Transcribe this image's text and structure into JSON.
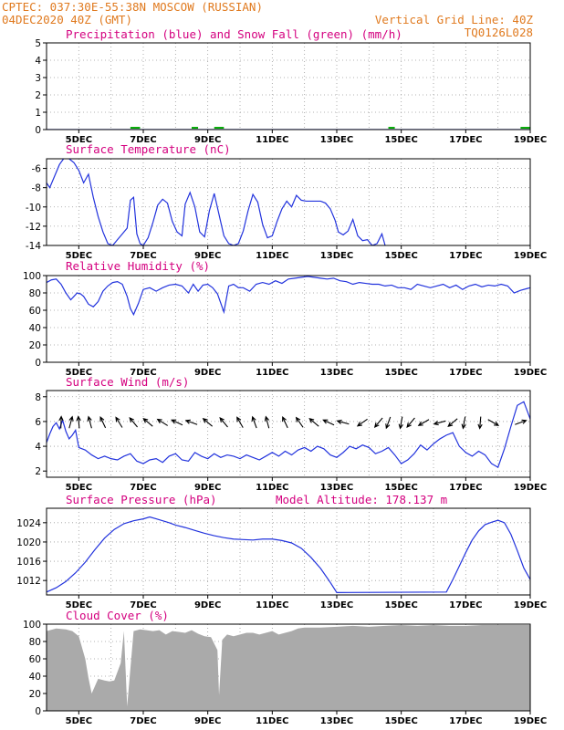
{
  "header": {
    "line1_left": "CPTEC:   037:30E-55:38N   MOSCOW (RUSSIAN)",
    "line2_left": "04DEC2020 40Z (GMT)",
    "line1_right": "Vertical Grid Line: 40Z",
    "line2_right": "TQ0126L028"
  },
  "colors": {
    "header": "#e07a1f",
    "title": "#d4007f",
    "line": "#2233dd",
    "snow": "#00aa00",
    "cloud": "#aaaaaa",
    "grid": "#9a9a9a",
    "arrow": "#000000"
  },
  "x_axis": {
    "ticks": [
      "5DEC",
      "7DEC",
      "9DEC",
      "11DEC",
      "13DEC",
      "15DEC",
      "17DEC",
      "19DEC"
    ],
    "tick_days": [
      5,
      7,
      9,
      11,
      13,
      15,
      17,
      19
    ],
    "range_days": [
      4.0,
      19.0
    ]
  },
  "chart_data": [
    {
      "id": "precip",
      "type": "line",
      "title": "Precipitation (blue) and Snow Fall (green) (mm/h)",
      "ylim": [
        0,
        5
      ],
      "yticks": [
        "0",
        "1",
        "2",
        "3",
        "4",
        "5"
      ],
      "series": [
        {
          "name": "Precipitation",
          "x": [
            4.0,
            19.0
          ],
          "y": [
            0,
            0
          ]
        },
        {
          "name": "Snow Fall",
          "segments": [
            [
              6.6,
              6.9
            ],
            [
              8.5,
              8.7
            ],
            [
              9.2,
              9.5
            ],
            [
              14.6,
              14.8
            ],
            [
              18.7,
              19.0
            ]
          ],
          "value": 0.05
        }
      ]
    },
    {
      "id": "temp",
      "type": "line",
      "title": "Surface Temperature (nC)",
      "ylim": [
        -14,
        -5
      ],
      "yticks": [
        "-14",
        "-12",
        "-10",
        "-8",
        "-6"
      ],
      "x": [
        4.0,
        4.1,
        4.25,
        4.4,
        4.55,
        4.7,
        4.85,
        5.0,
        5.15,
        5.3,
        5.45,
        5.6,
        5.75,
        5.9,
        6.05,
        6.2,
        6.35,
        6.5,
        6.6,
        6.7,
        6.8,
        6.9,
        7.0,
        7.15,
        7.3,
        7.45,
        7.6,
        7.75,
        7.9,
        8.05,
        8.2,
        8.3,
        8.45,
        8.6,
        8.75,
        8.9,
        9.05,
        9.2,
        9.35,
        9.5,
        9.65,
        9.8,
        9.95,
        10.1,
        10.25,
        10.4,
        10.55,
        10.7,
        10.85,
        11.0,
        11.15,
        11.3,
        11.45,
        11.6,
        11.75,
        11.9,
        12.05,
        12.2,
        12.35,
        12.5,
        12.65,
        12.8,
        12.95,
        13.05,
        13.2,
        13.35,
        13.5,
        13.65,
        13.8,
        13.95,
        14.1,
        14.25,
        14.4,
        14.5
      ],
      "y": [
        -7.5,
        -8.0,
        -6.8,
        -5.6,
        -4.9,
        -5.0,
        -5.4,
        -6.2,
        -7.5,
        -6.6,
        -9.0,
        -11.0,
        -12.6,
        -13.8,
        -14.0,
        -13.4,
        -12.8,
        -12.2,
        -9.3,
        -9.0,
        -12.8,
        -13.8,
        -14.0,
        -13.2,
        -11.6,
        -9.8,
        -9.2,
        -9.6,
        -11.5,
        -12.6,
        -13.0,
        -9.7,
        -8.5,
        -10.0,
        -12.6,
        -13.1,
        -10.4,
        -8.6,
        -10.8,
        -13.0,
        -13.8,
        -14.0,
        -13.8,
        -12.5,
        -10.4,
        -8.7,
        -9.5,
        -11.8,
        -13.2,
        -13.0,
        -11.5,
        -10.2,
        -9.4,
        -10.0,
        -8.8,
        -9.3,
        -9.4,
        -9.4,
        -9.4,
        -9.4,
        -9.6,
        -10.2,
        -11.4,
        -12.6,
        -12.9,
        -12.5,
        -11.3,
        -13.0,
        -13.5,
        -13.4,
        -14.0,
        -13.8,
        -12.8,
        -14.0
      ]
    },
    {
      "id": "rh",
      "type": "line",
      "title": "Relative Humidity (%)",
      "ylim": [
        0,
        100
      ],
      "yticks": [
        "0",
        "20",
        "40",
        "60",
        "80",
        "100"
      ],
      "x": [
        4.0,
        4.15,
        4.3,
        4.45,
        4.6,
        4.75,
        4.85,
        4.95,
        5.05,
        5.15,
        5.3,
        5.45,
        5.6,
        5.75,
        5.9,
        6.05,
        6.2,
        6.35,
        6.5,
        6.6,
        6.7,
        6.85,
        7.0,
        7.2,
        7.4,
        7.6,
        7.8,
        8.0,
        8.2,
        8.4,
        8.55,
        8.7,
        8.85,
        9.0,
        9.15,
        9.3,
        9.5,
        9.65,
        9.8,
        9.95,
        10.1,
        10.3,
        10.5,
        10.7,
        10.9,
        11.1,
        11.3,
        11.5,
        11.7,
        11.9,
        12.1,
        12.3,
        12.5,
        12.7,
        12.9,
        13.1,
        13.3,
        13.5,
        13.7,
        13.9,
        14.1,
        14.3,
        14.5,
        14.7,
        14.9,
        15.1,
        15.3,
        15.5,
        15.7,
        15.9,
        16.1,
        16.3,
        16.5,
        16.7,
        16.9,
        17.1,
        17.3,
        17.5,
        17.7,
        17.9,
        18.1,
        18.3,
        18.5,
        18.7,
        18.9,
        19.0
      ],
      "y": [
        92,
        95,
        96,
        90,
        80,
        72,
        76,
        80,
        79,
        76,
        67,
        64,
        70,
        82,
        88,
        92,
        93,
        90,
        76,
        62,
        55,
        68,
        84,
        86,
        82,
        86,
        89,
        90,
        88,
        80,
        90,
        82,
        89,
        90,
        86,
        79,
        58,
        88,
        90,
        86,
        86,
        82,
        90,
        92,
        90,
        94,
        91,
        96,
        97,
        98,
        99,
        98,
        97,
        96,
        97,
        94,
        93,
        90,
        92,
        91,
        90,
        90,
        88,
        89,
        86,
        86,
        84,
        90,
        88,
        86,
        88,
        90,
        86,
        89,
        84,
        88,
        90,
        87,
        89,
        88,
        90,
        88,
        80,
        83,
        85,
        86
      ]
    },
    {
      "id": "wind",
      "type": "line",
      "title": "Surface Wind (m/s)",
      "ylim": [
        1.5,
        8.5
      ],
      "yticks": [
        "2",
        "4",
        "6",
        "8"
      ],
      "x": [
        4.0,
        4.1,
        4.2,
        4.3,
        4.4,
        4.5,
        4.6,
        4.7,
        4.8,
        4.9,
        5.0,
        5.2,
        5.4,
        5.6,
        5.8,
        6.0,
        6.2,
        6.4,
        6.6,
        6.8,
        7.0,
        7.2,
        7.4,
        7.6,
        7.8,
        8.0,
        8.2,
        8.4,
        8.6,
        8.8,
        9.0,
        9.2,
        9.4,
        9.6,
        9.8,
        10.0,
        10.2,
        10.4,
        10.6,
        10.8,
        11.0,
        11.2,
        11.4,
        11.6,
        11.8,
        12.0,
        12.2,
        12.4,
        12.6,
        12.8,
        13.0,
        13.2,
        13.4,
        13.6,
        13.8,
        14.0,
        14.2,
        14.4,
        14.6,
        14.8,
        15.0,
        15.2,
        15.4,
        15.6,
        15.8,
        16.0,
        16.2,
        16.4,
        16.6,
        16.8,
        17.0,
        17.2,
        17.4,
        17.6,
        17.8,
        18.0,
        18.2,
        18.4,
        18.6,
        18.8,
        19.0
      ],
      "y": [
        4.3,
        5.0,
        5.6,
        5.9,
        5.4,
        6.1,
        5.2,
        4.6,
        4.9,
        5.3,
        3.9,
        3.7,
        3.3,
        3.0,
        3.2,
        3.0,
        2.9,
        3.2,
        3.4,
        2.8,
        2.6,
        2.9,
        3.0,
        2.7,
        3.2,
        3.4,
        2.9,
        2.8,
        3.5,
        3.2,
        3.0,
        3.4,
        3.1,
        3.3,
        3.2,
        3.0,
        3.3,
        3.1,
        2.9,
        3.2,
        3.5,
        3.2,
        3.6,
        3.3,
        3.7,
        3.9,
        3.6,
        4.0,
        3.8,
        3.3,
        3.1,
        3.5,
        4.0,
        3.8,
        4.1,
        3.9,
        3.4,
        3.6,
        3.9,
        3.3,
        2.6,
        2.9,
        3.4,
        4.1,
        3.7,
        4.2,
        4.6,
        4.9,
        5.1,
        4.0,
        3.5,
        3.2,
        3.6,
        3.3,
        2.6,
        2.3,
        3.8,
        5.6,
        7.3,
        7.6,
        6.2
      ],
      "arrows": [
        {
          "x": 4.45,
          "angle": -88
        },
        {
          "x": 4.75,
          "angle": -75
        },
        {
          "x": 5.0,
          "angle": -95
        },
        {
          "x": 5.35,
          "angle": -105
        },
        {
          "x": 5.75,
          "angle": -115
        },
        {
          "x": 6.25,
          "angle": -122
        },
        {
          "x": 6.7,
          "angle": -130
        },
        {
          "x": 7.15,
          "angle": -140
        },
        {
          "x": 7.6,
          "angle": -148
        },
        {
          "x": 8.05,
          "angle": -155
        },
        {
          "x": 8.5,
          "angle": -160
        },
        {
          "x": 9.0,
          "angle": -140
        },
        {
          "x": 9.5,
          "angle": -130
        },
        {
          "x": 10.0,
          "angle": -120
        },
        {
          "x": 10.45,
          "angle": -110
        },
        {
          "x": 10.85,
          "angle": -105
        },
        {
          "x": 11.4,
          "angle": -115
        },
        {
          "x": 11.85,
          "angle": -125
        },
        {
          "x": 12.3,
          "angle": -140
        },
        {
          "x": 12.75,
          "angle": -155
        },
        {
          "x": 13.2,
          "angle": -165
        },
        {
          "x": 13.8,
          "angle": 145
        },
        {
          "x": 14.3,
          "angle": 130
        },
        {
          "x": 14.6,
          "angle": 110
        },
        {
          "x": 15.0,
          "angle": 100
        },
        {
          "x": 15.3,
          "angle": 130
        },
        {
          "x": 15.7,
          "angle": 150
        },
        {
          "x": 16.2,
          "angle": 165
        },
        {
          "x": 16.6,
          "angle": 140
        },
        {
          "x": 16.95,
          "angle": 100
        },
        {
          "x": 17.45,
          "angle": 95
        },
        {
          "x": 17.85,
          "angle": 30
        },
        {
          "x": 18.7,
          "angle": -20
        }
      ]
    },
    {
      "id": "pressure",
      "type": "line",
      "title": "Surface Pressure (hPa)",
      "annotation": "Model Altitude: 178.137 m",
      "ylim": [
        1009,
        1027
      ],
      "yticks": [
        "1012",
        "1016",
        "1020",
        "1024"
      ],
      "x": [
        4.0,
        4.3,
        4.6,
        4.9,
        5.2,
        5.5,
        5.8,
        6.1,
        6.4,
        6.7,
        7.0,
        7.2,
        7.4,
        7.6,
        7.8,
        8.0,
        8.3,
        8.6,
        8.9,
        9.2,
        9.5,
        9.8,
        10.1,
        10.4,
        10.7,
        11.0,
        11.3,
        11.6,
        11.9,
        12.2,
        12.5,
        12.8,
        13.0,
        16.4,
        16.6,
        16.8,
        17.0,
        17.2,
        17.4,
        17.6,
        17.8,
        18.0,
        18.2,
        18.4,
        18.6,
        18.8,
        19.0
      ],
      "y": [
        1009.6,
        1010.5,
        1011.8,
        1013.6,
        1015.8,
        1018.4,
        1020.8,
        1022.6,
        1023.8,
        1024.4,
        1024.8,
        1025.2,
        1024.8,
        1024.4,
        1024.0,
        1023.5,
        1023.0,
        1022.4,
        1021.8,
        1021.3,
        1020.9,
        1020.6,
        1020.5,
        1020.4,
        1020.6,
        1020.6,
        1020.3,
        1019.8,
        1018.7,
        1016.8,
        1014.5,
        1011.6,
        1009.5,
        1009.6,
        1012.2,
        1015.0,
        1017.8,
        1020.4,
        1022.3,
        1023.6,
        1024.1,
        1024.5,
        1024.0,
        1021.6,
        1018.2,
        1014.6,
        1012.2
      ]
    },
    {
      "id": "cloud",
      "type": "area",
      "title": "Cloud Cover (%)",
      "ylim": [
        0,
        100
      ],
      "yticks": [
        "0",
        "20",
        "40",
        "60",
        "80",
        "100"
      ],
      "x": [
        4.0,
        4.3,
        4.6,
        4.8,
        5.0,
        5.2,
        5.3,
        5.4,
        5.6,
        5.8,
        5.95,
        6.1,
        6.3,
        6.4,
        6.5,
        6.7,
        6.9,
        7.1,
        7.3,
        7.5,
        7.7,
        7.9,
        8.1,
        8.3,
        8.5,
        8.7,
        8.9,
        9.1,
        9.3,
        9.35,
        9.45,
        9.6,
        9.8,
        10.0,
        10.2,
        10.4,
        10.6,
        10.8,
        11.0,
        11.2,
        11.4,
        11.6,
        11.8,
        12.0,
        12.5,
        13.0,
        13.5,
        14.0,
        14.5,
        15.0,
        15.5,
        16.0,
        16.5,
        17.0,
        17.5,
        18.0,
        18.5,
        19.0
      ],
      "y": [
        92,
        95,
        94,
        92,
        86,
        60,
        38,
        20,
        37,
        35,
        34,
        35,
        55,
        92,
        5,
        92,
        94,
        93,
        92,
        93,
        88,
        92,
        91,
        90,
        93,
        89,
        86,
        85,
        70,
        18,
        82,
        88,
        86,
        88,
        90,
        90,
        88,
        90,
        92,
        88,
        90,
        92,
        95,
        96,
        96,
        97,
        98,
        97,
        98,
        99,
        98,
        99,
        98,
        98,
        99,
        99,
        99,
        99
      ]
    }
  ]
}
